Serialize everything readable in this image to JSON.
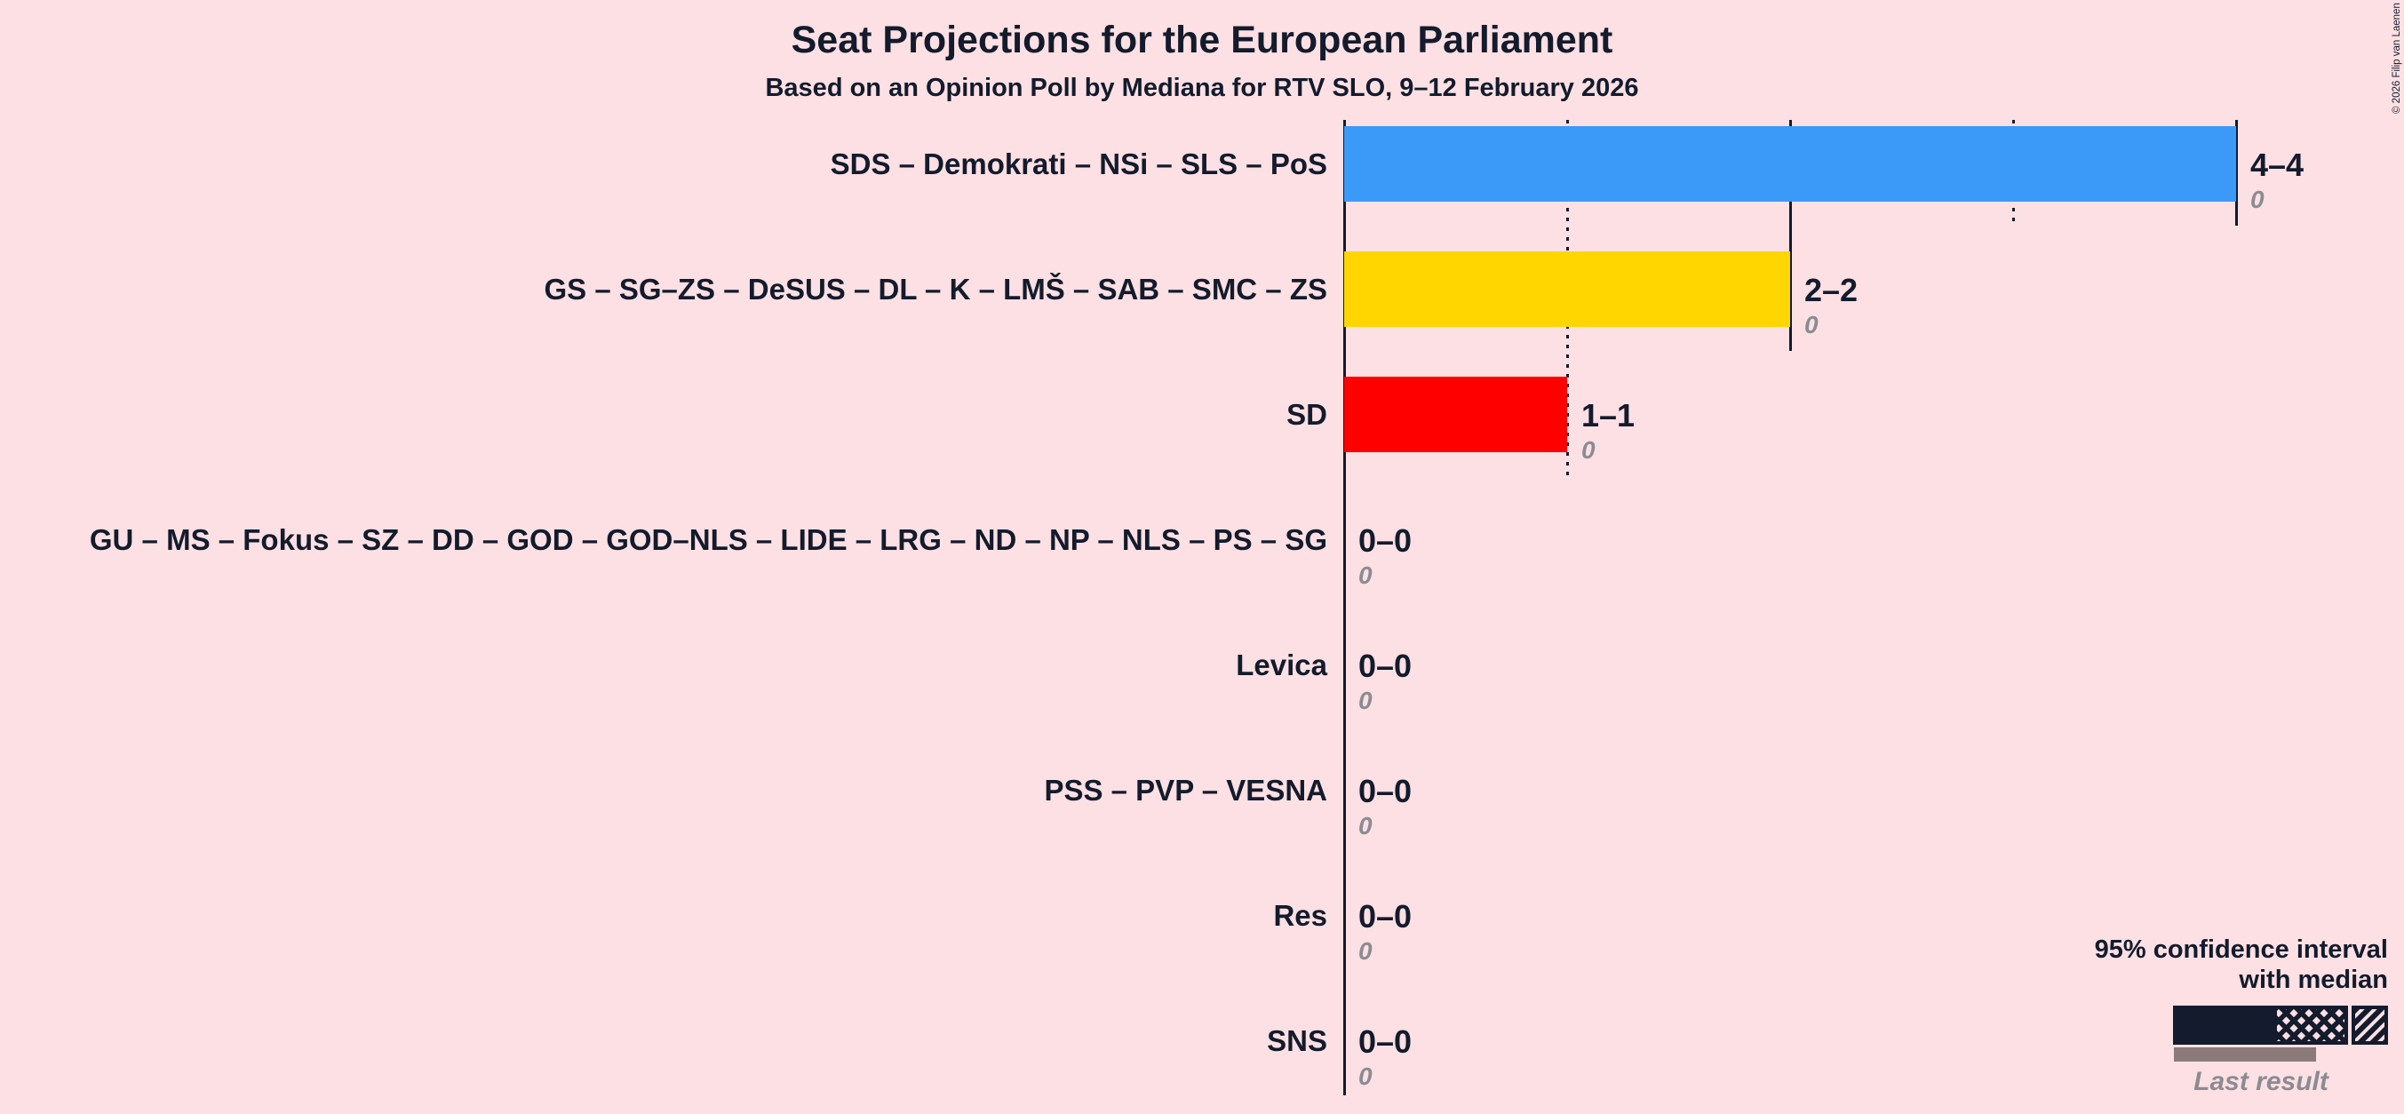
{
  "title": "Seat Projections for the European Parliament",
  "subtitle": "Based on an Opinion Poll by Mediana for RTV SLO, 9–12 February 2026",
  "copyright": "© 2026 Filip van Laenen",
  "colors": {
    "background": "#FCE0E3",
    "text": "#131B2C",
    "gray_text": "#8B8B93",
    "last_result_bar": "#8C7A7A",
    "blue": "#3B99F8",
    "yellow": "#FFD600",
    "red": "#FF0000"
  },
  "legend": {
    "line1": "95% confidence interval",
    "line2": "with median",
    "last_result_label": "Last result"
  },
  "chart_data": {
    "type": "bar",
    "title": "Seat Projections for the European Parliament",
    "subtitle": "Based on an Opinion Poll by Mediana for RTV SLO, 9–12 February 2026",
    "unit": "seats",
    "x_axis": {
      "min": 0,
      "max": 4,
      "minor_tick": 1,
      "major_tick": 2,
      "gridlines": "minor dotted, major solid"
    },
    "legend_position": "bottom-right",
    "rows": [
      {
        "party": "SDS – Demokrati – NSi – SLS – PoS",
        "seats_low": 4,
        "seats_high": 4,
        "median": 4,
        "last_result": 0,
        "label": "4–4",
        "last_result_label": "0",
        "color": "#3B99F8"
      },
      {
        "party": "GS – SG–ZS – DeSUS – DL – K – LMŠ – SAB – SMC – ZS",
        "seats_low": 2,
        "seats_high": 2,
        "median": 2,
        "last_result": 0,
        "label": "2–2",
        "last_result_label": "0",
        "color": "#FFD600"
      },
      {
        "party": "SD",
        "seats_low": 1,
        "seats_high": 1,
        "median": 1,
        "last_result": 0,
        "label": "1–1",
        "last_result_label": "0",
        "color": "#FF0000"
      },
      {
        "party": "GU – MS – Fokus – SZ – DD – GOD – GOD–NLS – LIDE – LRG – ND – NP – NLS – PS – SG",
        "seats_low": 0,
        "seats_high": 0,
        "median": 0,
        "last_result": 0,
        "label": "0–0",
        "last_result_label": "0",
        "color": null
      },
      {
        "party": "Levica",
        "seats_low": 0,
        "seats_high": 0,
        "median": 0,
        "last_result": 0,
        "label": "0–0",
        "last_result_label": "0",
        "color": null
      },
      {
        "party": "PSS – PVP – VESNA",
        "seats_low": 0,
        "seats_high": 0,
        "median": 0,
        "last_result": 0,
        "label": "0–0",
        "last_result_label": "0",
        "color": null
      },
      {
        "party": "Res",
        "seats_low": 0,
        "seats_high": 0,
        "median": 0,
        "last_result": 0,
        "label": "0–0",
        "last_result_label": "0",
        "color": null
      },
      {
        "party": "SNS",
        "seats_low": 0,
        "seats_high": 0,
        "median": 0,
        "last_result": 0,
        "label": "0–0",
        "last_result_label": "0",
        "color": null
      }
    ]
  }
}
